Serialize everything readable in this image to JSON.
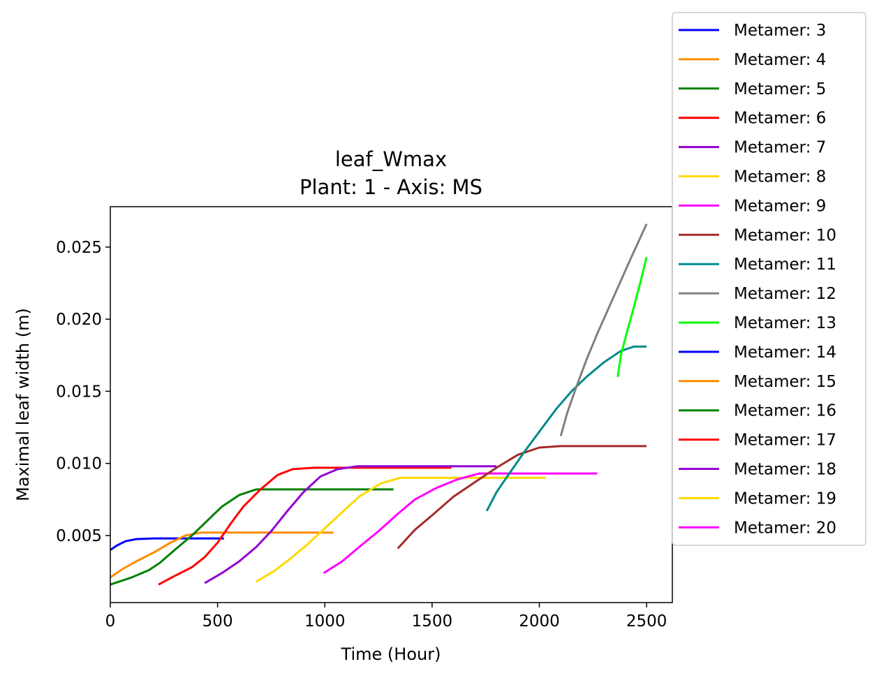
{
  "chart_data": {
    "type": "line",
    "title": "leaf_Wmax",
    "subtitle": "Plant: 1 - Axis: MS",
    "xlabel": "Time (Hour)",
    "ylabel": "Maximal leaf width (m)",
    "xlim": [
      0,
      2620
    ],
    "ylim": [
      0.00035,
      0.0278
    ],
    "xticks": [
      0,
      500,
      1000,
      1500,
      2000,
      2500
    ],
    "xtick_labels": [
      "0",
      "500",
      "1000",
      "1500",
      "2000",
      "2500"
    ],
    "yticks": [
      0.005,
      0.01,
      0.015,
      0.02,
      0.025
    ],
    "ytick_labels": [
      "0.005",
      "0.010",
      "0.015",
      "0.020",
      "0.025"
    ],
    "grid": false,
    "legend_position": "outside-right",
    "series": [
      {
        "name": "Metamer: 3",
        "color": "#0000ff",
        "points": [
          [
            0,
            0.004
          ],
          [
            30,
            0.0043
          ],
          [
            70,
            0.0046
          ],
          [
            120,
            0.00475
          ],
          [
            200,
            0.0048
          ],
          [
            300,
            0.0048
          ],
          [
            400,
            0.0048
          ],
          [
            530,
            0.0048
          ]
        ]
      },
      {
        "name": "Metamer: 4",
        "color": "#ff8c00",
        "points": [
          [
            0,
            0.0021
          ],
          [
            60,
            0.0027
          ],
          [
            120,
            0.0032
          ],
          [
            200,
            0.0038
          ],
          [
            280,
            0.0045
          ],
          [
            350,
            0.005
          ],
          [
            420,
            0.0052
          ],
          [
            600,
            0.0052
          ],
          [
            800,
            0.0052
          ],
          [
            1040,
            0.0052
          ]
        ]
      },
      {
        "name": "Metamer: 5",
        "color": "#008000",
        "points": [
          [
            0,
            0.0016
          ],
          [
            100,
            0.0021
          ],
          [
            180,
            0.0026
          ],
          [
            230,
            0.0031
          ],
          [
            300,
            0.004
          ],
          [
            380,
            0.005
          ],
          [
            450,
            0.006
          ],
          [
            520,
            0.007
          ],
          [
            600,
            0.0078
          ],
          [
            680,
            0.0082
          ],
          [
            800,
            0.0082
          ],
          [
            1000,
            0.0082
          ],
          [
            1320,
            0.0082
          ]
        ]
      },
      {
        "name": "Metamer: 6",
        "color": "#ff0000",
        "points": [
          [
            225,
            0.0016
          ],
          [
            300,
            0.0022
          ],
          [
            380,
            0.0028
          ],
          [
            440,
            0.0035
          ],
          [
            500,
            0.0045
          ],
          [
            560,
            0.0058
          ],
          [
            620,
            0.007
          ],
          [
            700,
            0.0082
          ],
          [
            780,
            0.0092
          ],
          [
            850,
            0.0096
          ],
          [
            950,
            0.0097
          ],
          [
            1200,
            0.0097
          ],
          [
            1590,
            0.0097
          ]
        ]
      },
      {
        "name": "Metamer: 7",
        "color": "#9400d3",
        "points": [
          [
            440,
            0.0017
          ],
          [
            520,
            0.0024
          ],
          [
            600,
            0.0032
          ],
          [
            680,
            0.0042
          ],
          [
            750,
            0.0053
          ],
          [
            820,
            0.0066
          ],
          [
            900,
            0.008
          ],
          [
            980,
            0.0091
          ],
          [
            1060,
            0.0096
          ],
          [
            1150,
            0.0098
          ],
          [
            1400,
            0.0098
          ],
          [
            1800,
            0.0098
          ]
        ]
      },
      {
        "name": "Metamer: 8",
        "color": "#ffd700",
        "points": [
          [
            680,
            0.0018
          ],
          [
            760,
            0.0025
          ],
          [
            840,
            0.0034
          ],
          [
            920,
            0.0044
          ],
          [
            1000,
            0.0055
          ],
          [
            1080,
            0.0066
          ],
          [
            1160,
            0.0077
          ],
          [
            1260,
            0.0086
          ],
          [
            1350,
            0.009
          ],
          [
            1500,
            0.009
          ],
          [
            1800,
            0.009
          ],
          [
            2030,
            0.009
          ]
        ]
      },
      {
        "name": "Metamer: 9",
        "color": "#ff00ff",
        "points": [
          [
            995,
            0.0024
          ],
          [
            1080,
            0.0032
          ],
          [
            1160,
            0.0042
          ],
          [
            1250,
            0.0053
          ],
          [
            1340,
            0.0065
          ],
          [
            1420,
            0.0075
          ],
          [
            1520,
            0.0083
          ],
          [
            1620,
            0.0089
          ],
          [
            1720,
            0.0093
          ],
          [
            1800,
            0.0093
          ],
          [
            2000,
            0.0093
          ],
          [
            2270,
            0.0093
          ]
        ]
      },
      {
        "name": "Metamer: 10",
        "color": "#a52a2a",
        "points": [
          [
            1340,
            0.0041
          ],
          [
            1420,
            0.0054
          ],
          [
            1500,
            0.0064
          ],
          [
            1600,
            0.0077
          ],
          [
            1700,
            0.0087
          ],
          [
            1800,
            0.0097
          ],
          [
            1900,
            0.0106
          ],
          [
            2000,
            0.0111
          ],
          [
            2100,
            0.0112
          ],
          [
            2300,
            0.0112
          ],
          [
            2500,
            0.0112
          ]
        ]
      },
      {
        "name": "Metamer: 11",
        "color": "#008b8b",
        "points": [
          [
            1755,
            0.0067
          ],
          [
            1800,
            0.008
          ],
          [
            1860,
            0.0093
          ],
          [
            1930,
            0.0108
          ],
          [
            2000,
            0.0122
          ],
          [
            2080,
            0.0138
          ],
          [
            2150,
            0.015
          ],
          [
            2220,
            0.016
          ],
          [
            2300,
            0.017
          ],
          [
            2380,
            0.0178
          ],
          [
            2440,
            0.0181
          ],
          [
            2500,
            0.0181
          ]
        ]
      },
      {
        "name": "Metamer: 12",
        "color": "#808080",
        "points": [
          [
            2100,
            0.0119
          ],
          [
            2130,
            0.0135
          ],
          [
            2170,
            0.0152
          ],
          [
            2220,
            0.0172
          ],
          [
            2270,
            0.019
          ],
          [
            2330,
            0.021
          ],
          [
            2375,
            0.0225
          ],
          [
            2420,
            0.024
          ],
          [
            2460,
            0.0253
          ],
          [
            2500,
            0.0266
          ]
        ]
      },
      {
        "name": "Metamer: 13",
        "color": "#00ff00",
        "points": [
          [
            2365,
            0.016
          ],
          [
            2380,
            0.0175
          ],
          [
            2410,
            0.0192
          ],
          [
            2440,
            0.0208
          ],
          [
            2470,
            0.0225
          ],
          [
            2500,
            0.0243
          ]
        ]
      },
      {
        "name": "Metamer: 14",
        "color": "#0000ff",
        "points": []
      },
      {
        "name": "Metamer: 15",
        "color": "#ff8c00",
        "points": []
      },
      {
        "name": "Metamer: 16",
        "color": "#008000",
        "points": []
      },
      {
        "name": "Metamer: 17",
        "color": "#ff0000",
        "points": []
      },
      {
        "name": "Metamer: 18",
        "color": "#9400d3",
        "points": []
      },
      {
        "name": "Metamer: 19",
        "color": "#ffd700",
        "points": []
      },
      {
        "name": "Metamer: 20",
        "color": "#ff00ff",
        "points": []
      }
    ]
  }
}
